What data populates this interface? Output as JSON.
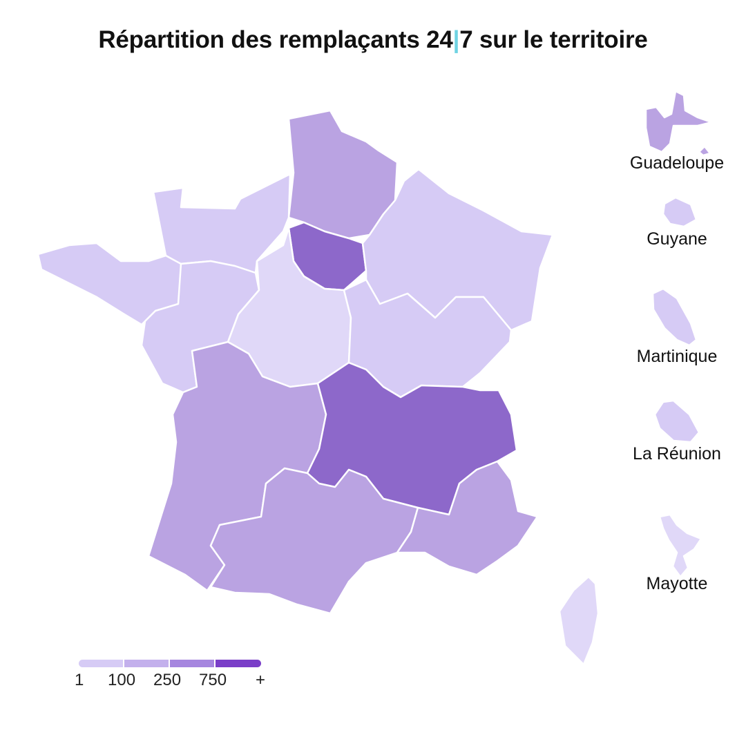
{
  "title": {
    "before": "Répartition des remplaçants 24",
    "separator": "|",
    "after": "7 sur le territoire"
  },
  "palette": {
    "level1": "#e0d8f8",
    "level2": "#d6cbf5",
    "level3": "#baa3e2",
    "level4": "#8d68ca",
    "accent_separator": "#6fd3e3",
    "legend_end": "#7a3ec8"
  },
  "dom_territories": [
    {
      "name": "Guadeloupe"
    },
    {
      "name": "Guyane"
    },
    {
      "name": "Martinique"
    },
    {
      "name": "La Réunion"
    },
    {
      "name": "Mayotte"
    }
  ],
  "legend": {
    "labels": [
      "1",
      "100",
      "250",
      "750",
      "+"
    ]
  }
}
